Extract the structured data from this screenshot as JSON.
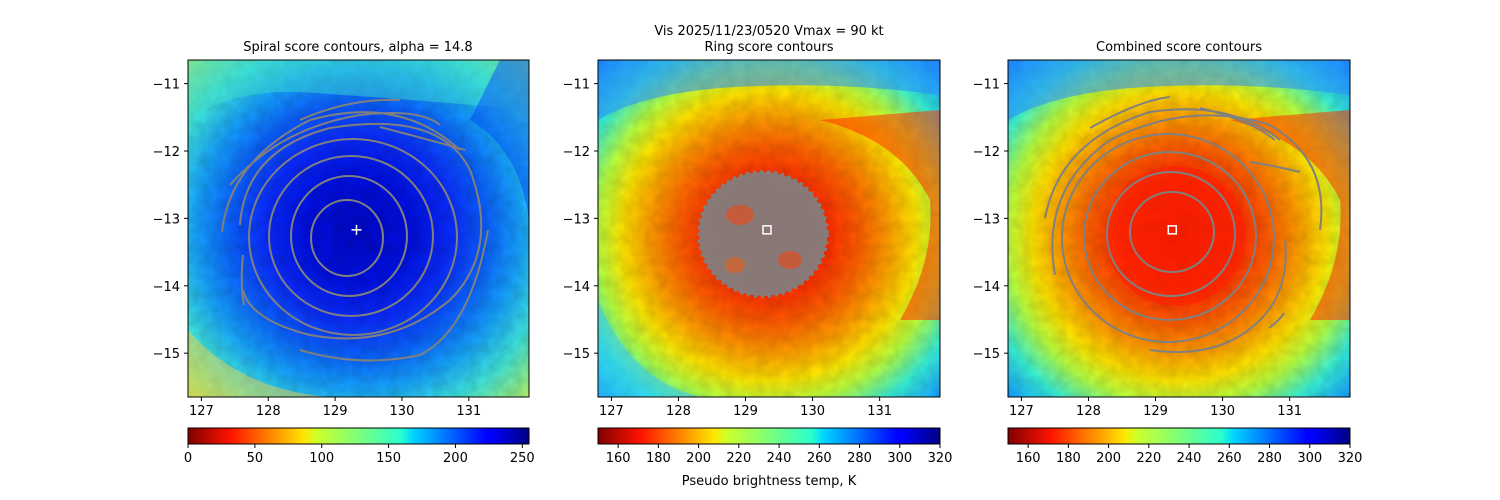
{
  "suptitle": {
    "line1": "Vis  2025/11/23/0520    Vmax = 90 kt",
    "line2": "Ring score contours"
  },
  "colorbar_label": "Pseudo brightness temp, K",
  "chart_data": [
    {
      "type": "heatmap",
      "title": "Spiral score contours, alpha = 14.8",
      "xticks": [
        "127",
        "128",
        "129",
        "130",
        "131"
      ],
      "xtick_values": [
        127,
        128,
        129,
        130,
        131
      ],
      "yticks": [
        "−11",
        "−12",
        "−13",
        "−14",
        "−15"
      ],
      "ytick_values": [
        -11,
        -12,
        -13,
        -14,
        -15
      ],
      "xlim": [
        126.8,
        131.9
      ],
      "ylim": [
        -15.65,
        -10.65
      ],
      "colormap": "jet",
      "colorbar": {
        "ticks": [
          "0",
          "50",
          "100",
          "150",
          "200",
          "250"
        ],
        "values": [
          0,
          50,
          100,
          150,
          200,
          250
        ],
        "range": [
          0,
          255
        ],
        "reversed": false
      },
      "center_marker": {
        "symbol": "+",
        "lon": 129.32,
        "lat": -13.17,
        "color": "#ffffff"
      },
      "contour_color": "#808080"
    },
    {
      "type": "heatmap",
      "title": "",
      "xticks": [
        "127",
        "128",
        "129",
        "130",
        "131"
      ],
      "xtick_values": [
        127,
        128,
        129,
        130,
        131
      ],
      "yticks": [
        "−11",
        "−12",
        "−13",
        "−14",
        "−15"
      ],
      "ytick_values": [
        -11,
        -12,
        -13,
        -14,
        -15
      ],
      "xlim": [
        126.8,
        131.9
      ],
      "ylim": [
        -15.65,
        -10.65
      ],
      "colormap": "jet_r",
      "colorbar": {
        "ticks": [
          "160",
          "180",
          "200",
          "220",
          "240",
          "260",
          "280",
          "300",
          "320"
        ],
        "values": [
          160,
          180,
          200,
          220,
          240,
          260,
          280,
          300,
          320
        ],
        "range": [
          150,
          320
        ],
        "reversed": true
      },
      "center_marker": {
        "symbol": "square",
        "lon": 129.32,
        "lat": -13.17,
        "color": "#ffffff"
      },
      "contour_color": "#808080"
    },
    {
      "type": "heatmap",
      "title": "Combined score contours",
      "xticks": [
        "127",
        "128",
        "129",
        "130",
        "131"
      ],
      "xtick_values": [
        127,
        128,
        129,
        130,
        131
      ],
      "yticks": [
        "−11",
        "−12",
        "−13",
        "−14",
        "−15"
      ],
      "ytick_values": [
        -11,
        -12,
        -13,
        -14,
        -15
      ],
      "xlim": [
        126.8,
        131.9
      ],
      "ylim": [
        -15.65,
        -10.65
      ],
      "colormap": "jet_r",
      "colorbar": {
        "ticks": [
          "160",
          "180",
          "200",
          "220",
          "240",
          "260",
          "280",
          "300",
          "320"
        ],
        "values": [
          160,
          180,
          200,
          220,
          240,
          260,
          280,
          300,
          320
        ],
        "range": [
          150,
          320
        ],
        "reversed": true
      },
      "center_marker": {
        "symbol": "square",
        "lon": 129.25,
        "lat": -13.17,
        "color": "#ffffff"
      },
      "contour_color": "#808080"
    }
  ]
}
